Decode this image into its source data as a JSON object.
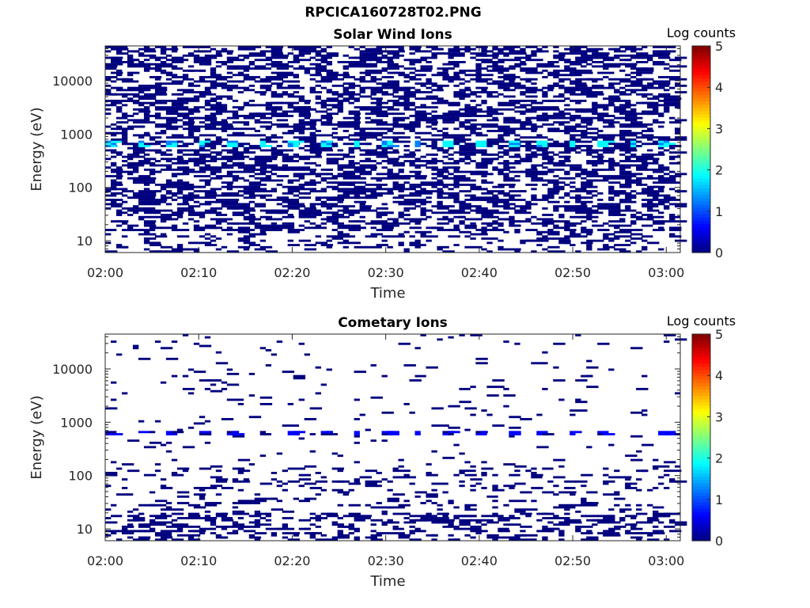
{
  "figure": {
    "title": "RPCICA160728T02.PNG"
  },
  "colormap": [
    "#00007f",
    "#0000ff",
    "#007fff",
    "#00ffff",
    "#7fff7f",
    "#ffff00",
    "#ff7f00",
    "#ff0000",
    "#7f0000"
  ],
  "chart_data": [
    {
      "type": "heatmap",
      "title": "Solar Wind Ions",
      "xlabel": "Time",
      "ylabel": "Energy (eV)",
      "x_ticks": [
        "02:00",
        "02:10",
        "02:20",
        "02:30",
        "02:40",
        "02:50",
        "03:00"
      ],
      "x_range_minutes": [
        0,
        61.5
      ],
      "y_scale": "log",
      "y_range": [
        6,
        45000
      ],
      "y_ticks": [
        "10",
        "100",
        "1000",
        "10000"
      ],
      "colorbar": {
        "label": "Log counts",
        "range": [
          0,
          5
        ],
        "ticks": [
          "0",
          "1",
          "2",
          "3",
          "4",
          "5"
        ]
      },
      "features": {
        "background_band_log_counts": 0,
        "peak_energy_eV": 650,
        "peak_log_counts": 2,
        "peak_cycle_minutes": 3.3
      }
    },
    {
      "type": "heatmap",
      "title": "Cometary Ions",
      "xlabel": "Time",
      "ylabel": "Energy (eV)",
      "x_ticks": [
        "02:00",
        "02:10",
        "02:20",
        "02:30",
        "02:40",
        "02:50",
        "03:00"
      ],
      "x_range_minutes": [
        0,
        61.5
      ],
      "y_scale": "log",
      "y_range": [
        6,
        45000
      ],
      "y_ticks": [
        "10",
        "100",
        "1000",
        "10000"
      ],
      "colorbar": {
        "label": "Log counts",
        "range": [
          0,
          5
        ],
        "ticks": [
          "0",
          "1",
          "2",
          "3",
          "4",
          "5"
        ]
      },
      "features": {
        "low_energy_band_log_counts": 0.3,
        "band_energy_eV": 650,
        "band_log_counts": 0.4,
        "peak_cycle_minutes": 3.3
      }
    }
  ]
}
